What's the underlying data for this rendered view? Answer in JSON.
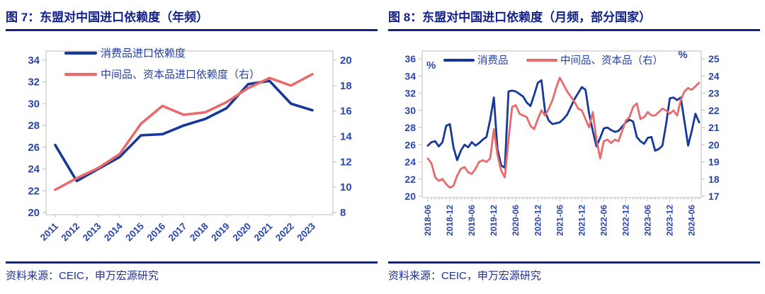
{
  "colors": {
    "title_navy": "#101f8a",
    "rule_navy": "#14228e",
    "axis_text": "#2a46a8",
    "legend_text": "#27409f",
    "source_text": "#1c2f96",
    "line_blue": "#17389b",
    "line_red": "#e96a6b",
    "frame_gray": "#c6c6c6",
    "background": "#ffffff"
  },
  "figures": [
    {
      "title": "图 7：东盟对中国进口依赖度（年频）",
      "source": "资料来源：CEIC，申万宏源研究"
    },
    {
      "title": "图 8：东盟对中国进口依赖度（月频，部分国家）",
      "source": "资料来源：CEIC，申万宏源研究"
    }
  ],
  "chart_data": [
    {
      "type": "line",
      "title": "东盟对中国进口依赖度（年频）",
      "xlabel": "",
      "ylabel": "",
      "grid": false,
      "legend_position": "top-left-vertical",
      "x_label_rotation": -45,
      "x_label_every": 1,
      "categories": [
        "2011",
        "2012",
        "2013",
        "2014",
        "2015",
        "2016",
        "2017",
        "2018",
        "2019",
        "2020",
        "2021",
        "2022",
        "2023"
      ],
      "left_axis": {
        "min": 20,
        "max": 34,
        "step": 2,
        "unit": ""
      },
      "right_axis": {
        "min": 8,
        "max": 20,
        "step": 2,
        "unit": ""
      },
      "series": [
        {
          "name": "消费品进口依赖度",
          "axis": "left",
          "color": "line_blue",
          "values": [
            26.2,
            22.9,
            24.0,
            25.1,
            27.1,
            27.2,
            28.0,
            28.6,
            29.6,
            31.8,
            32.1,
            30.0,
            29.4
          ]
        },
        {
          "name": "中间品、资本品进口依赖度（右）",
          "axis": "right",
          "color": "line_red",
          "values": [
            9.8,
            10.7,
            11.5,
            12.6,
            15.0,
            16.4,
            15.7,
            15.9,
            16.7,
            17.8,
            18.6,
            18.0,
            18.9
          ]
        }
      ]
    },
    {
      "type": "line",
      "title": "东盟对中国进口依赖度（月频，部分国家）",
      "xlabel": "",
      "ylabel": "%",
      "grid": false,
      "legend_position": "top-inside-horizontal",
      "x_label_rotation": -90,
      "x_label_every": 6,
      "categories": [
        "2018-06",
        "2018-07",
        "2018-08",
        "2018-09",
        "2018-10",
        "2018-11",
        "2018-12",
        "2019-01",
        "2019-02",
        "2019-03",
        "2019-04",
        "2019-05",
        "2019-06",
        "2019-07",
        "2019-08",
        "2019-09",
        "2019-10",
        "2019-11",
        "2019-12",
        "2020-01",
        "2020-02",
        "2020-03",
        "2020-04",
        "2020-05",
        "2020-06",
        "2020-07",
        "2020-08",
        "2020-09",
        "2020-10",
        "2020-11",
        "2020-12",
        "2021-01",
        "2021-02",
        "2021-03",
        "2021-04",
        "2021-05",
        "2021-06",
        "2021-07",
        "2021-08",
        "2021-09",
        "2021-10",
        "2021-11",
        "2021-12",
        "2022-01",
        "2022-02",
        "2022-03",
        "2022-04",
        "2022-05",
        "2022-06",
        "2022-07",
        "2022-08",
        "2022-09",
        "2022-10",
        "2022-11",
        "2022-12",
        "2023-01",
        "2023-02",
        "2023-03",
        "2023-04",
        "2023-05",
        "2023-06",
        "2023-07",
        "2023-08",
        "2023-09",
        "2023-10",
        "2023-11",
        "2023-12",
        "2024-01",
        "2024-02",
        "2024-03",
        "2024-04",
        "2024-05",
        "2024-06",
        "2024-07",
        "2024-08"
      ],
      "left_axis": {
        "min": 20,
        "max": 36,
        "step": 2,
        "unit": "%"
      },
      "right_axis": {
        "min": 17,
        "max": 25,
        "step": 1,
        "unit": "%"
      },
      "series": [
        {
          "name": "消费品",
          "axis": "left",
          "color": "line_blue",
          "values": [
            25.9,
            26.3,
            26.4,
            25.8,
            26.3,
            28.2,
            28.4,
            25.7,
            24.2,
            25.3,
            26.0,
            25.7,
            26.3,
            25.9,
            26.2,
            26.6,
            26.9,
            28.9,
            31.5,
            25.5,
            23.6,
            23.3,
            32.2,
            32.3,
            32.2,
            31.9,
            31.6,
            30.9,
            30.5,
            31.8,
            33.2,
            33.5,
            29.8,
            28.8,
            28.4,
            28.5,
            28.6,
            29.0,
            29.5,
            30.4,
            31.3,
            32.0,
            32.7,
            32.4,
            29.6,
            27.6,
            25.8,
            26.8,
            27.9,
            28.0,
            27.7,
            27.5,
            27.6,
            28.1,
            28.6,
            28.9,
            28.7,
            26.9,
            26.4,
            26.1,
            26.8,
            26.9,
            25.3,
            25.5,
            25.9,
            28.4,
            31.4,
            31.5,
            31.2,
            31.5,
            28.7,
            25.9,
            27.6,
            29.6,
            28.6
          ]
        },
        {
          "name": "中间品、资本品（右）",
          "axis": "right",
          "color": "line_red",
          "values": [
            19.2,
            18.9,
            18.1,
            17.9,
            18.0,
            17.7,
            17.5,
            17.6,
            18.2,
            18.6,
            18.7,
            18.4,
            18.3,
            18.6,
            19.0,
            19.1,
            19.0,
            19.2,
            20.9,
            19.4,
            18.5,
            18.1,
            20.3,
            22.2,
            22.3,
            21.8,
            21.7,
            21.6,
            21.1,
            20.9,
            21.5,
            22.0,
            21.7,
            22.1,
            22.6,
            23.3,
            23.9,
            23.5,
            23.1,
            22.8,
            22.5,
            22.1,
            22.0,
            21.5,
            21.0,
            21.9,
            20.3,
            19.2,
            20.2,
            20.3,
            20.1,
            20.3,
            20.2,
            20.8,
            21.4,
            21.6,
            22.2,
            22.4,
            21.5,
            21.6,
            21.9,
            21.7,
            21.7,
            21.9,
            22.1,
            22.0,
            21.8,
            22.0,
            21.7,
            22.6,
            23.1,
            23.3,
            23.2,
            23.4,
            23.6
          ]
        }
      ]
    }
  ]
}
